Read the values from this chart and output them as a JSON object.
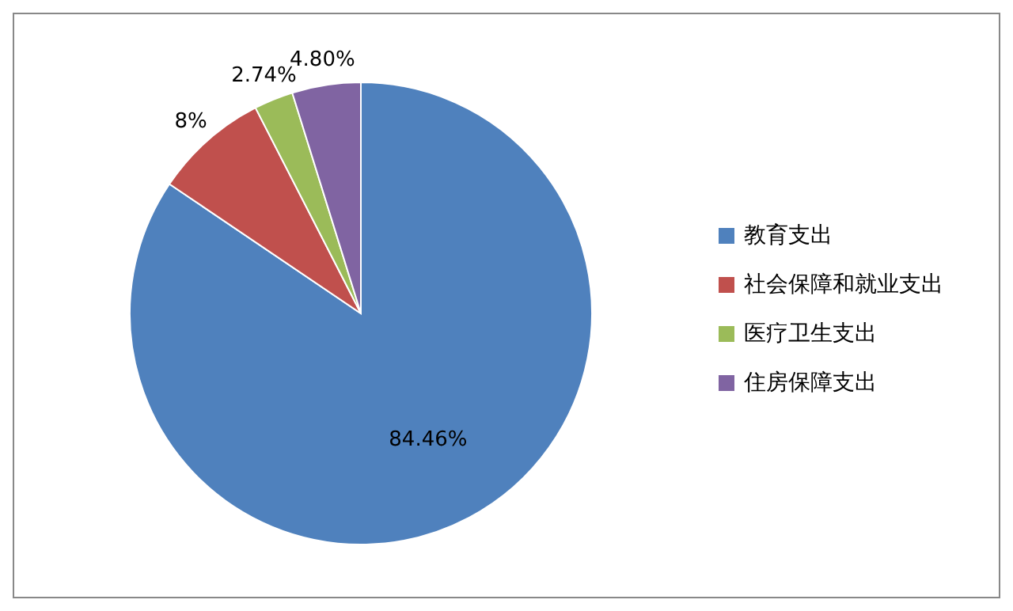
{
  "chart_data": {
    "type": "pie",
    "categories": [
      "教育支出",
      "社会保障和就业支出",
      "医疗卫生支出",
      "住房保障支出"
    ],
    "values": [
      84.46,
      8,
      2.74,
      4.8
    ],
    "colors": [
      "#4f81bd",
      "#c0504d",
      "#9bbb59",
      "#8064a2"
    ],
    "value_labels": [
      "84.46%",
      "8%",
      "2.74%",
      "4.80%"
    ],
    "legend": "right"
  }
}
